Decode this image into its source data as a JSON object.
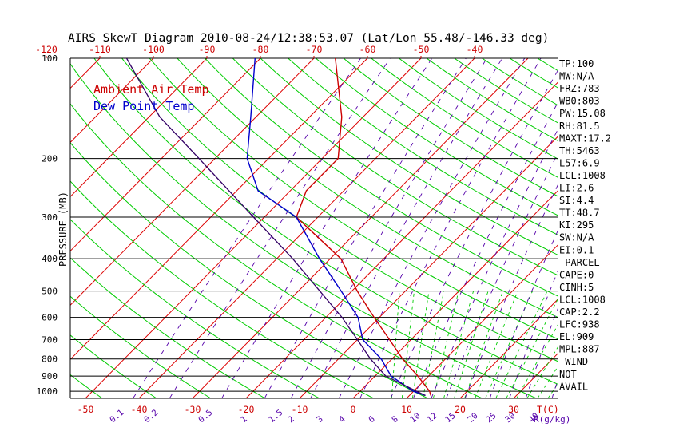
{
  "title": "AIRS SkewT Diagram 2010-08-24/12:38:53.07 (Lat/Lon 55.48/-146.33 deg)",
  "legend": {
    "ambient": "Ambient Air Temp",
    "dewpoint": "Dew Point Temp",
    "ambient_color": "#cc0000",
    "dewpoint_color": "#0000cc"
  },
  "colors": {
    "isotherm": "#dd0000",
    "dry_adiabat": "#00cc00",
    "moist_adiabat": "#00cc00",
    "mixing_ratio": "#5500aa",
    "isobar": "#000000",
    "parcel": "#330066"
  },
  "ylabel": "PRESSURE (MB)",
  "bottom_axis_unit": "T(C)",
  "mixing_unit": "R(g/kg)",
  "top_ticks": [
    "-120",
    "-110",
    "-100",
    "-90",
    "-80",
    "-70",
    "-60",
    "-50",
    "-40"
  ],
  "bottom_ticks": [
    "-50",
    "-40",
    "-30",
    "-20",
    "-10",
    "0",
    "10",
    "20",
    "30"
  ],
  "mixing_labels": [
    "0.1",
    "0.2",
    "0.5",
    "1",
    "1.5",
    "2",
    "3",
    "4",
    "6",
    "8",
    "10",
    "12",
    "15",
    "20",
    "25",
    "30",
    "40"
  ],
  "pressure_levels": [
    {
      "p": 100,
      "label": "100"
    },
    {
      "p": 200,
      "label": "200"
    },
    {
      "p": 300,
      "label": "300"
    },
    {
      "p": 400,
      "label": "400"
    },
    {
      "p": 500,
      "label": "500"
    },
    {
      "p": 600,
      "label": "600"
    },
    {
      "p": 700,
      "label": "700"
    },
    {
      "p": 800,
      "label": "800"
    },
    {
      "p": 900,
      "label": "900"
    },
    {
      "p": 1000,
      "label": "1000"
    }
  ],
  "indices": [
    "TP:100",
    "MW:N/A",
    "FRZ:783",
    "WB0:803",
    "PW:15.08",
    "RH:81.5",
    "MAXT:17.2",
    "TH:5463",
    "L57:6.9",
    "LCL:1008",
    "LI:2.6",
    "SI:4.4",
    "TT:48.7",
    "KI:295",
    "SW:N/A",
    "EI:0.1",
    "—PARCEL—",
    "CAPE:0",
    "CINH:5",
    "LCL:1008",
    "CAP:2.2",
    "LFC:938",
    "EL:909",
    "MPL:887",
    "—WIND—",
    "NOT",
    "AVAIL"
  ],
  "chart_data": {
    "type": "line",
    "title": "AIRS SkewT Diagram 2010-08-24/12:38:53.07 (Lat/Lon 55.48/-146.33 deg)",
    "xlabel": "T(C)",
    "ylabel": "PRESSURE (MB)",
    "y_scale": "log",
    "ylim": [
      1050,
      100
    ],
    "series": [
      {
        "name": "Ambient Air Temp",
        "points": [
          {
            "p": 1030,
            "t": 14
          },
          {
            "p": 1000,
            "t": 13
          },
          {
            "p": 900,
            "t": 8
          },
          {
            "p": 800,
            "t": 2
          },
          {
            "p": 700,
            "t": -4
          },
          {
            "p": 600,
            "t": -11
          },
          {
            "p": 500,
            "t": -19
          },
          {
            "p": 400,
            "t": -28
          },
          {
            "p": 300,
            "t": -44
          },
          {
            "p": 250,
            "t": -47
          },
          {
            "p": 200,
            "t": -47
          },
          {
            "p": 150,
            "t": -54
          },
          {
            "p": 100,
            "t": -66
          }
        ]
      },
      {
        "name": "Dew Point Temp",
        "points": [
          {
            "p": 1030,
            "t": 13
          },
          {
            "p": 1000,
            "t": 10
          },
          {
            "p": 900,
            "t": 3
          },
          {
            "p": 800,
            "t": -2
          },
          {
            "p": 700,
            "t": -9
          },
          {
            "p": 600,
            "t": -14
          },
          {
            "p": 500,
            "t": -22
          },
          {
            "p": 400,
            "t": -32
          },
          {
            "p": 300,
            "t": -44
          },
          {
            "p": 250,
            "t": -56
          },
          {
            "p": 200,
            "t": -64
          },
          {
            "p": 150,
            "t": -71
          },
          {
            "p": 100,
            "t": -81
          }
        ]
      },
      {
        "points": [
          {
            "p": 1030,
            "t": 13
          },
          {
            "p": 900,
            "t": 2
          },
          {
            "p": 800,
            "t": -4
          },
          {
            "p": 700,
            "t": -10
          },
          {
            "p": 600,
            "t": -17
          },
          {
            "p": 500,
            "t": -26
          },
          {
            "p": 400,
            "t": -37
          },
          {
            "p": 300,
            "t": -52
          },
          {
            "p": 200,
            "t": -73
          },
          {
            "p": 150,
            "t": -88
          },
          {
            "p": 100,
            "t": -105
          }
        ]
      }
    ]
  }
}
